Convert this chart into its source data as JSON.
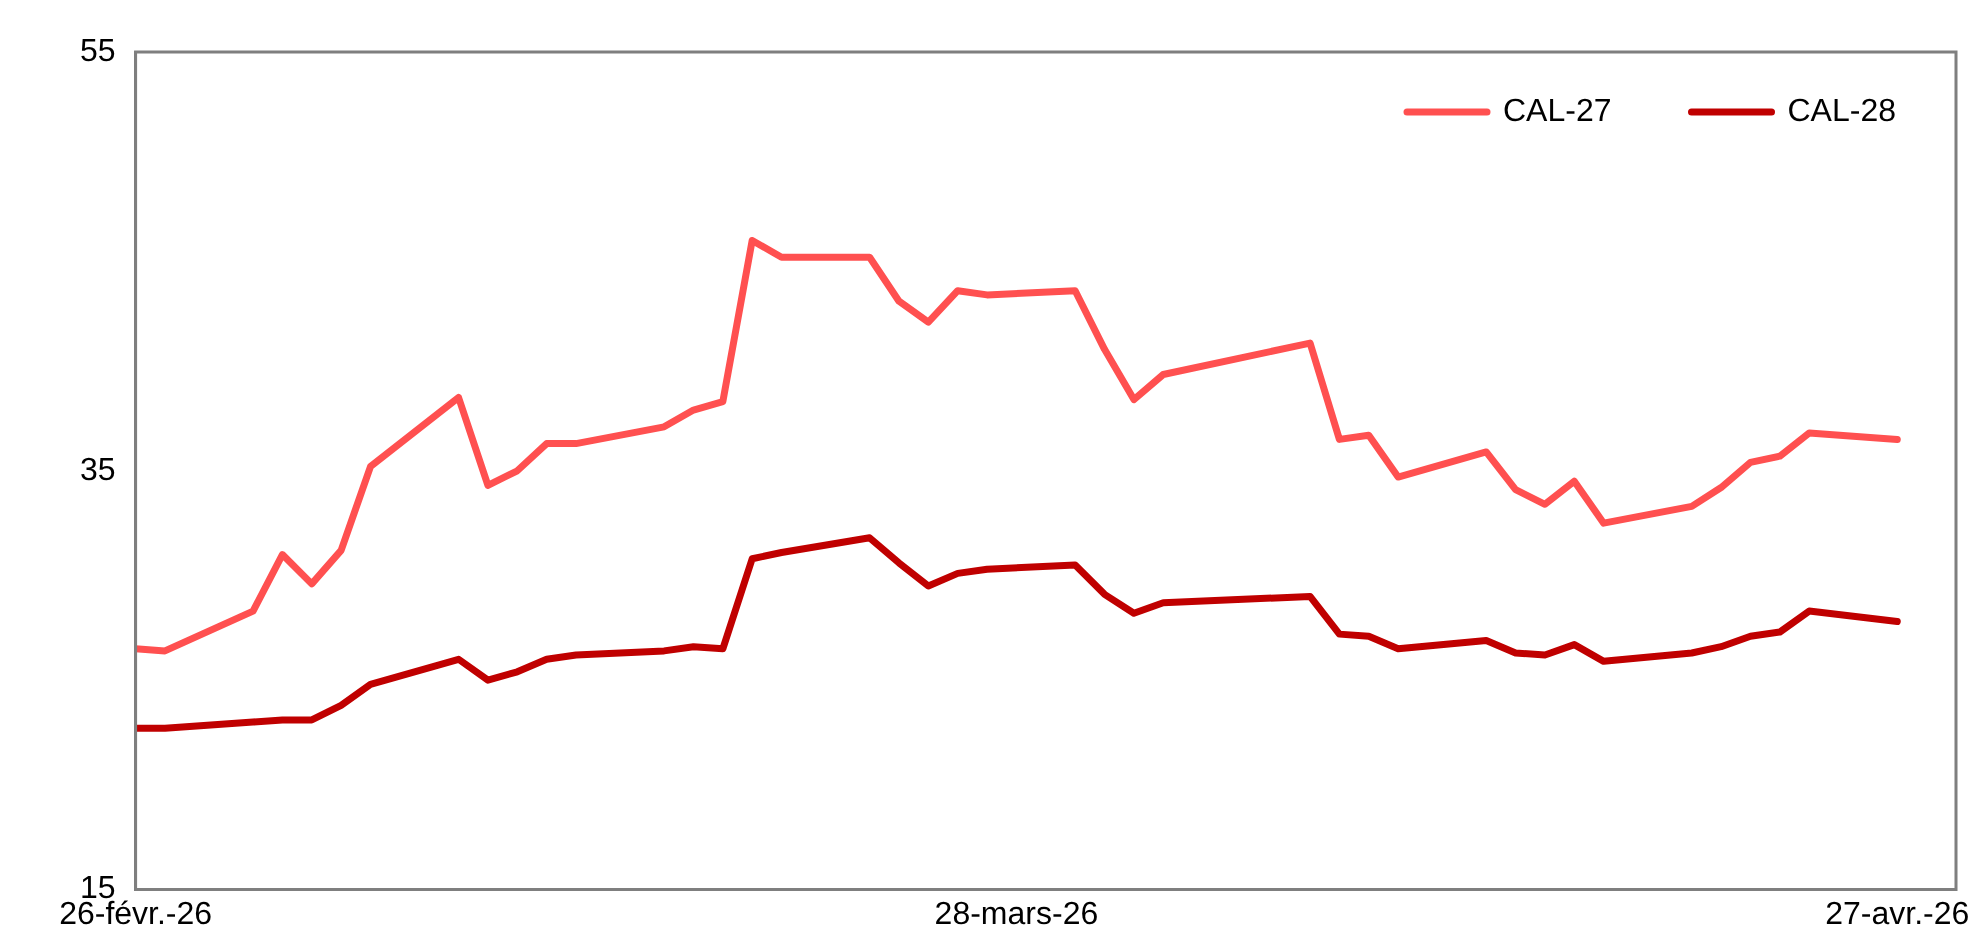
{
  "chart_data": {
    "type": "line",
    "x": [
      "2026-02-26",
      "2026-02-27",
      "2026-03-02",
      "2026-03-03",
      "2026-03-04",
      "2026-03-05",
      "2026-03-06",
      "2026-03-09",
      "2026-03-10",
      "2026-03-11",
      "2026-03-12",
      "2026-03-13",
      "2026-03-16",
      "2026-03-17",
      "2026-03-18",
      "2026-03-19",
      "2026-03-20",
      "2026-03-23",
      "2026-03-24",
      "2026-03-25",
      "2026-03-26",
      "2026-03-27",
      "2026-03-30",
      "2026-03-31",
      "2026-04-01",
      "2026-04-02",
      "2026-04-07",
      "2026-04-08",
      "2026-04-09",
      "2026-04-10",
      "2026-04-13",
      "2026-04-14",
      "2026-04-15",
      "2026-04-16",
      "2026-04-17",
      "2026-04-20",
      "2026-04-21",
      "2026-04-22",
      "2026-04-23",
      "2026-04-24",
      "2026-04-27"
    ],
    "series": [
      {
        "name": "CAL-27",
        "color": "#ff5050",
        "values": [
          26.5,
          26.4,
          28.3,
          31.0,
          29.6,
          31.2,
          35.2,
          38.5,
          34.3,
          35.0,
          36.3,
          36.3,
          37.1,
          37.9,
          38.3,
          46.0,
          45.2,
          45.2,
          43.1,
          42.1,
          43.6,
          43.4,
          43.6,
          40.8,
          38.4,
          39.6,
          41.1,
          36.5,
          36.7,
          34.7,
          35.9,
          34.1,
          33.4,
          34.5,
          32.5,
          33.3,
          34.2,
          35.4,
          35.7,
          36.8,
          36.5
        ]
      },
      {
        "name": "CAL-28",
        "color": "#c00000",
        "values": [
          22.7,
          22.7,
          23.0,
          23.1,
          23.1,
          23.8,
          24.8,
          26.0,
          25.0,
          25.4,
          26.0,
          26.2,
          26.4,
          26.6,
          26.5,
          30.8,
          31.1,
          31.8,
          30.6,
          29.5,
          30.1,
          30.3,
          30.5,
          29.1,
          28.2,
          28.7,
          29.0,
          27.2,
          27.1,
          26.5,
          26.9,
          26.3,
          26.2,
          26.7,
          25.9,
          26.3,
          26.6,
          27.1,
          27.3,
          28.3,
          27.8
        ]
      }
    ],
    "xlim": [
      "2026-02-26",
      "2026-04-29"
    ],
    "xticks": [
      {
        "value": "2026-02-26",
        "label": "26-févr.-26"
      },
      {
        "value": "2026-03-28",
        "label": "28-mars-26"
      },
      {
        "value": "2026-04-27",
        "label": "27-avr.-26"
      }
    ],
    "ylim": [
      15,
      55
    ],
    "yticks": [
      15,
      35,
      55
    ],
    "grid": false,
    "legend": "top right",
    "marker": "none",
    "line_style": "solid"
  }
}
